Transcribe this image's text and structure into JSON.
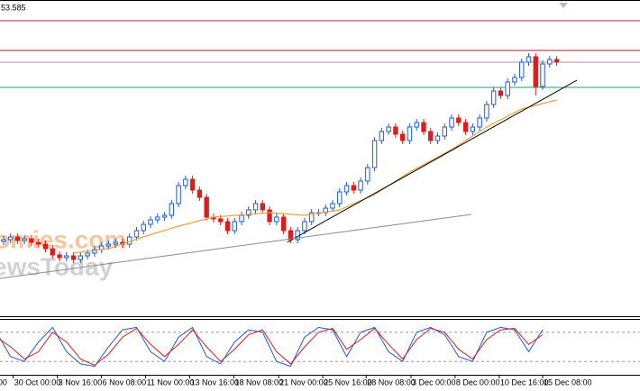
{
  "chart_data": {
    "type": "candlestick",
    "header": "53.585",
    "watermark": [
      "omies.com",
      "ewsToday"
    ],
    "xlim": [
      -0.5,
      90.9
    ],
    "ylim": [
      0,
      350
    ],
    "xticks": [
      {
        "value": -0.9,
        "label": "00"
      },
      {
        "value": 1.4,
        "label": "30 Oct 00:00"
      },
      {
        "value": 7.7,
        "label": "3 Nov 16:00"
      },
      {
        "value": 14.0,
        "label": "6 Nov 08:00"
      },
      {
        "value": 20.3,
        "label": "11 Nov 00:00"
      },
      {
        "value": 26.6,
        "label": "13 Nov 16:00"
      },
      {
        "value": 32.9,
        "label": "18 Nov 08:00"
      },
      {
        "value": 39.3,
        "label": "21 Nov 00:00"
      },
      {
        "value": 45.6,
        "label": "25 Nov 16:00"
      },
      {
        "value": 51.8,
        "label": "28 Nov 08:00"
      },
      {
        "value": 58.2,
        "label": "3 Dec 00:00"
      },
      {
        "value": 64.5,
        "label": "8 Dec 00:00"
      },
      {
        "value": 70.8,
        "label": "10 Dec 16:00"
      },
      {
        "value": 77.0,
        "label": "15 Dec 08:00"
      }
    ],
    "up_color": "#1e5bd6",
    "down_color": "#d81e1e",
    "open": [
      83,
      85,
      88,
      84,
      86,
      82,
      80,
      75,
      68,
      65,
      67,
      63,
      67,
      70,
      74,
      78,
      80,
      82,
      80,
      88,
      95,
      102,
      107,
      110,
      112,
      125,
      145,
      152,
      140,
      132,
      110,
      108,
      105,
      95,
      105,
      112,
      118,
      125,
      118,
      105,
      110,
      95,
      85,
      95,
      105,
      115,
      115,
      120,
      125,
      138,
      145,
      140,
      150,
      165,
      195,
      205,
      210,
      202,
      195,
      210,
      215,
      205,
      195,
      200,
      210,
      220,
      215,
      205,
      210,
      220,
      235,
      250,
      245,
      260,
      265,
      282,
      288,
      255,
      280,
      285
    ],
    "high": [
      89,
      92,
      92,
      90,
      90,
      86,
      84,
      79,
      72,
      71,
      71,
      71,
      74,
      78,
      82,
      84,
      86,
      86,
      92,
      99,
      106,
      111,
      114,
      116,
      129,
      149,
      156,
      156,
      144,
      136,
      114,
      112,
      109,
      109,
      116,
      122,
      129,
      129,
      122,
      114,
      114,
      99,
      99,
      109,
      119,
      119,
      124,
      129,
      142,
      149,
      149,
      154,
      169,
      199,
      209,
      214,
      214,
      206,
      214,
      219,
      219,
      209,
      204,
      214,
      224,
      224,
      219,
      214,
      224,
      239,
      254,
      254,
      264,
      269,
      286,
      292,
      292,
      284,
      289,
      289
    ],
    "low": [
      79,
      81,
      80,
      80,
      78,
      76,
      71,
      64,
      61,
      61,
      59,
      59,
      63,
      66,
      70,
      74,
      76,
      76,
      76,
      84,
      91,
      98,
      103,
      106,
      108,
      121,
      141,
      136,
      128,
      106,
      104,
      101,
      91,
      91,
      101,
      108,
      114,
      114,
      101,
      101,
      91,
      81,
      81,
      91,
      101,
      111,
      111,
      116,
      121,
      134,
      136,
      136,
      146,
      161,
      191,
      201,
      198,
      191,
      191,
      206,
      201,
      191,
      191,
      196,
      206,
      211,
      201,
      201,
      206,
      216,
      231,
      241,
      241,
      256,
      261,
      278,
      245,
      251,
      276,
      278
    ],
    "close": [
      85,
      88,
      84,
      86,
      82,
      80,
      75,
      68,
      65,
      67,
      63,
      67,
      70,
      74,
      78,
      80,
      82,
      80,
      88,
      95,
      102,
      107,
      110,
      112,
      125,
      145,
      152,
      140,
      132,
      110,
      108,
      105,
      95,
      105,
      112,
      118,
      125,
      118,
      105,
      110,
      95,
      85,
      95,
      105,
      115,
      115,
      120,
      125,
      138,
      145,
      140,
      150,
      165,
      195,
      205,
      210,
      202,
      195,
      210,
      215,
      205,
      195,
      200,
      210,
      220,
      215,
      205,
      210,
      220,
      235,
      250,
      245,
      260,
      265,
      282,
      288,
      255,
      280,
      285,
      282
    ],
    "ma": {
      "color": "#e8a33c",
      "x": [
        10,
        15,
        20,
        25,
        30,
        38,
        43,
        48,
        53,
        58,
        64,
        69,
        74,
        79
      ],
      "values": [
        70,
        75,
        88,
        100,
        110,
        115,
        112,
        118,
        135,
        160,
        185,
        210,
        230,
        240
      ]
    },
    "levels": [
      {
        "value": 328,
        "color": "#c0162a"
      },
      {
        "value": 295,
        "color": "#c0162a"
      },
      {
        "value": 282,
        "color": "#c98a9a"
      },
      {
        "value": 254,
        "color": "#2a9a7a"
      }
    ],
    "trendlines": [
      {
        "x": [
          40.5,
          81.9
        ],
        "y": [
          82,
          262
        ],
        "color": "#000000"
      },
      {
        "x": [
          -0.5,
          66.8
        ],
        "y": [
          42,
          113
        ],
        "color": "#8a8a8a"
      }
    ],
    "stochastic": {
      "ylim": [
        0,
        100
      ],
      "levels": [
        20,
        80
      ],
      "x": [
        -1,
        1,
        3,
        5,
        7,
        9,
        11,
        13,
        15,
        17,
        19,
        21,
        23,
        25,
        27,
        29,
        31,
        33,
        35,
        37,
        39,
        41,
        43,
        45,
        47,
        49,
        51,
        53,
        55,
        57,
        59,
        61,
        63,
        65,
        67,
        69,
        71,
        73,
        75,
        77
      ],
      "series": [
        {
          "color": "#1e5bd6",
          "values": [
            80,
            30,
            20,
            60,
            90,
            40,
            15,
            10,
            50,
            85,
            90,
            40,
            20,
            70,
            90,
            30,
            15,
            60,
            85,
            80,
            20,
            10,
            70,
            90,
            85,
            30,
            80,
            90,
            40,
            20,
            80,
            90,
            75,
            30,
            20,
            80,
            90,
            85,
            40,
            85
          ]
        },
        {
          "color": "#d81e1e",
          "values": [
            70,
            50,
            25,
            40,
            80,
            60,
            25,
            12,
            35,
            70,
            88,
            55,
            30,
            55,
            85,
            50,
            20,
            45,
            75,
            85,
            40,
            15,
            50,
            80,
            88,
            45,
            65,
            88,
            55,
            25,
            65,
            88,
            80,
            45,
            25,
            65,
            85,
            88,
            55,
            75
          ]
        }
      ]
    }
  }
}
